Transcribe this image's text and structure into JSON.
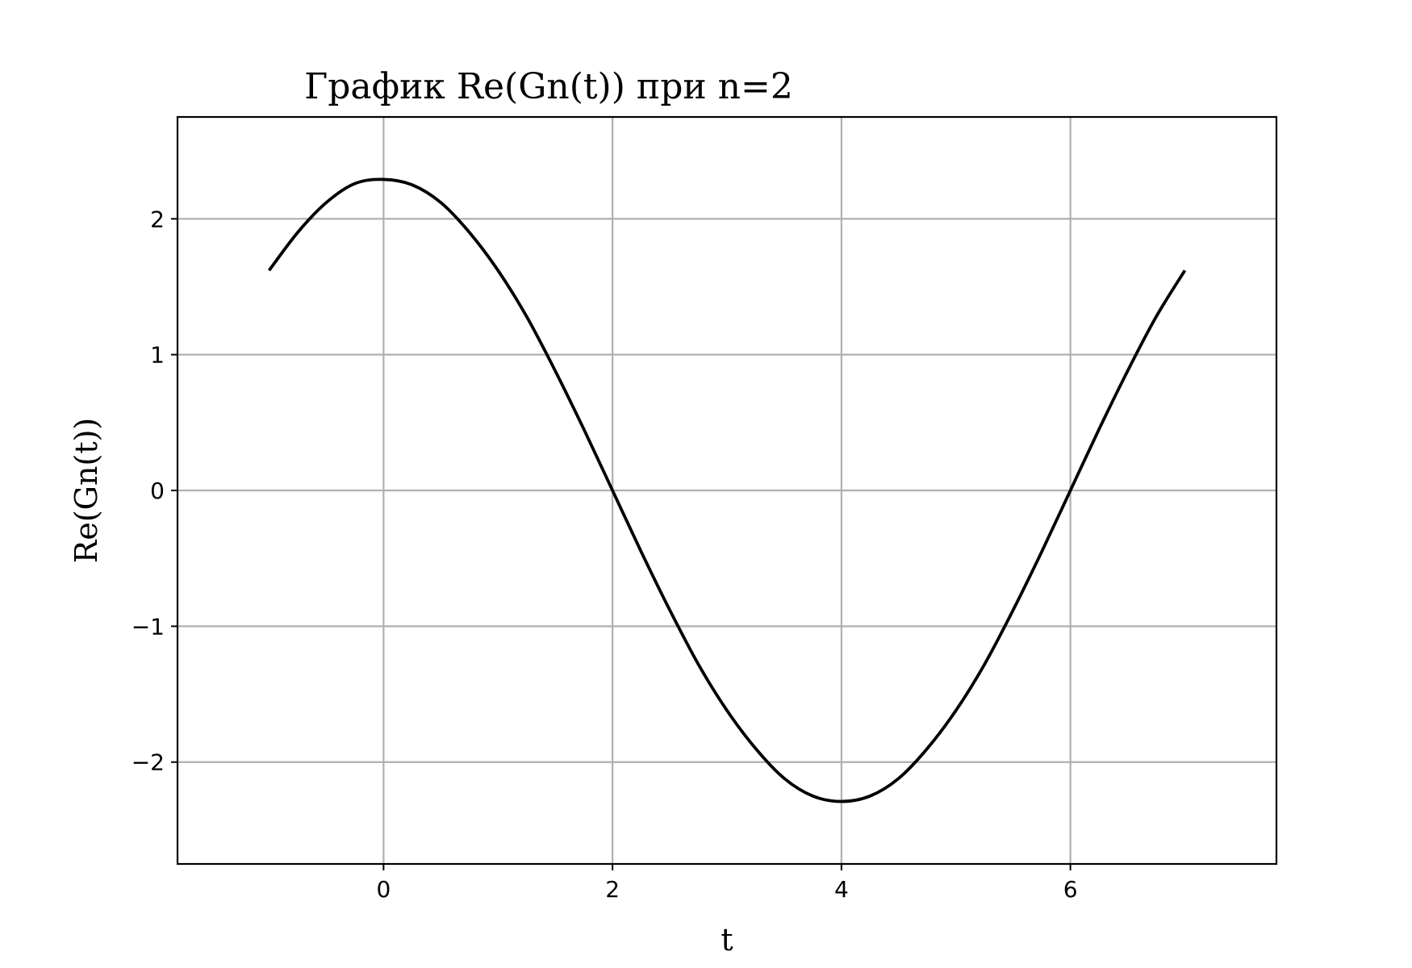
{
  "chart_data": {
    "type": "line",
    "title": "График Re(Gn(t)) при n=2",
    "xlabel": "t",
    "ylabel": "Re(Gn(t))",
    "xlim": [
      -1.8,
      7.8
    ],
    "ylim": [
      -2.75,
      2.75
    ],
    "x_ticks": [
      0,
      2,
      4,
      6
    ],
    "y_ticks": [
      -2,
      -1,
      0,
      1,
      2
    ],
    "x_tick_labels": [
      "0",
      "2",
      "4",
      "6"
    ],
    "y_tick_labels": [
      "−2",
      "−1",
      "0",
      "1",
      "2"
    ],
    "grid": true,
    "line_color": "#000000",
    "grid_color": "#b0b0b0",
    "series": [
      {
        "x": [
          -1.0,
          -0.75,
          -0.5,
          -0.25,
          0.0,
          0.25,
          0.5,
          0.75,
          1.0,
          1.25,
          1.5,
          1.75,
          2.0,
          2.25,
          2.5,
          2.75,
          3.0,
          3.25,
          3.5,
          3.75,
          4.0,
          4.25,
          4.5,
          4.75,
          5.0,
          5.25,
          5.5,
          5.75,
          6.0,
          6.25,
          6.5,
          6.75,
          7.0
        ],
        "y": [
          1.62,
          1.9,
          2.12,
          2.26,
          2.29,
          2.25,
          2.12,
          1.9,
          1.62,
          1.28,
          0.88,
          0.45,
          0.0,
          -0.45,
          -0.88,
          -1.28,
          -1.62,
          -1.9,
          -2.12,
          -2.25,
          -2.29,
          -2.25,
          -2.12,
          -1.9,
          -1.62,
          -1.28,
          -0.88,
          -0.45,
          0.0,
          0.45,
          0.88,
          1.28,
          1.62
        ]
      }
    ]
  }
}
